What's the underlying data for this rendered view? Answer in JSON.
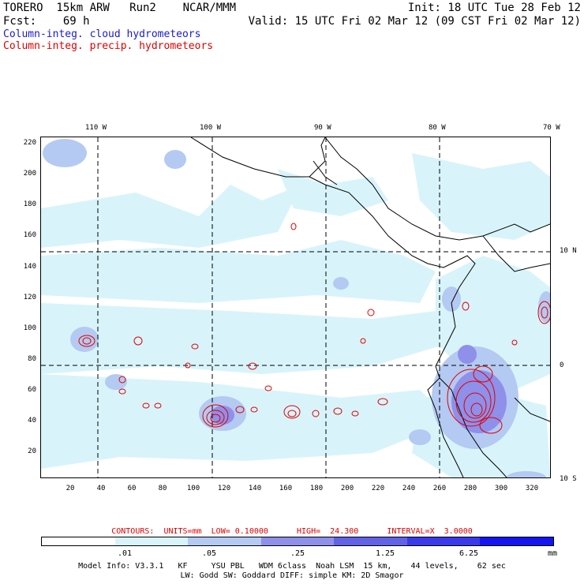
{
  "header": {
    "model": "TORERO  15km ARW   Run2    NCAR/MMM",
    "init": "Init: 18 UTC Tue 28 Feb 12",
    "fcst_label": "Fcst:",
    "fcst_hours": "69 h",
    "valid": "Valid: 15 UTC Fri 02 Mar 12 (09 CST Fri 02 Mar 12)",
    "field_cloud": "Column-integ. cloud hydrometeors",
    "field_precip": "Column-integ. precip. hydrometeors"
  },
  "axes": {
    "lon_labels": [
      "110 W",
      "100 W",
      "90 W",
      "80 W",
      "70 W"
    ],
    "lat_labels": [
      "10 N",
      "0",
      "10 S"
    ],
    "x_ticks": [
      "20",
      "40",
      "60",
      "80",
      "100",
      "120",
      "140",
      "160",
      "180",
      "200",
      "220",
      "240",
      "260",
      "280",
      "300",
      "320"
    ],
    "y_ticks": [
      "220",
      "200",
      "180",
      "160",
      "140",
      "120",
      "100",
      "80",
      "60",
      "40",
      "20"
    ]
  },
  "contour_info": "CONTOURS:  UNITS=mm  LOW= 0.10000      HIGH=  24.300      INTERVAL=X  3.0000",
  "colorbar": {
    "values": [
      ".01",
      ".05",
      ".25",
      "1.25",
      "6.25"
    ],
    "units": "mm",
    "colors": [
      "#ffffff",
      "#d8f4fa",
      "#b4caf2",
      "#8e90ea",
      "#6262e8",
      "#3a3aec",
      "#1414f4"
    ]
  },
  "model_info": {
    "line1": "Model Info: V3.3.1   KF     YSU PBL   WDM 6class  Noah LSM  15 km,    44 levels,    62 sec",
    "line2": "LW: Godd SW: Goddard DIFF: simple KM: 2D Smagor"
  }
}
